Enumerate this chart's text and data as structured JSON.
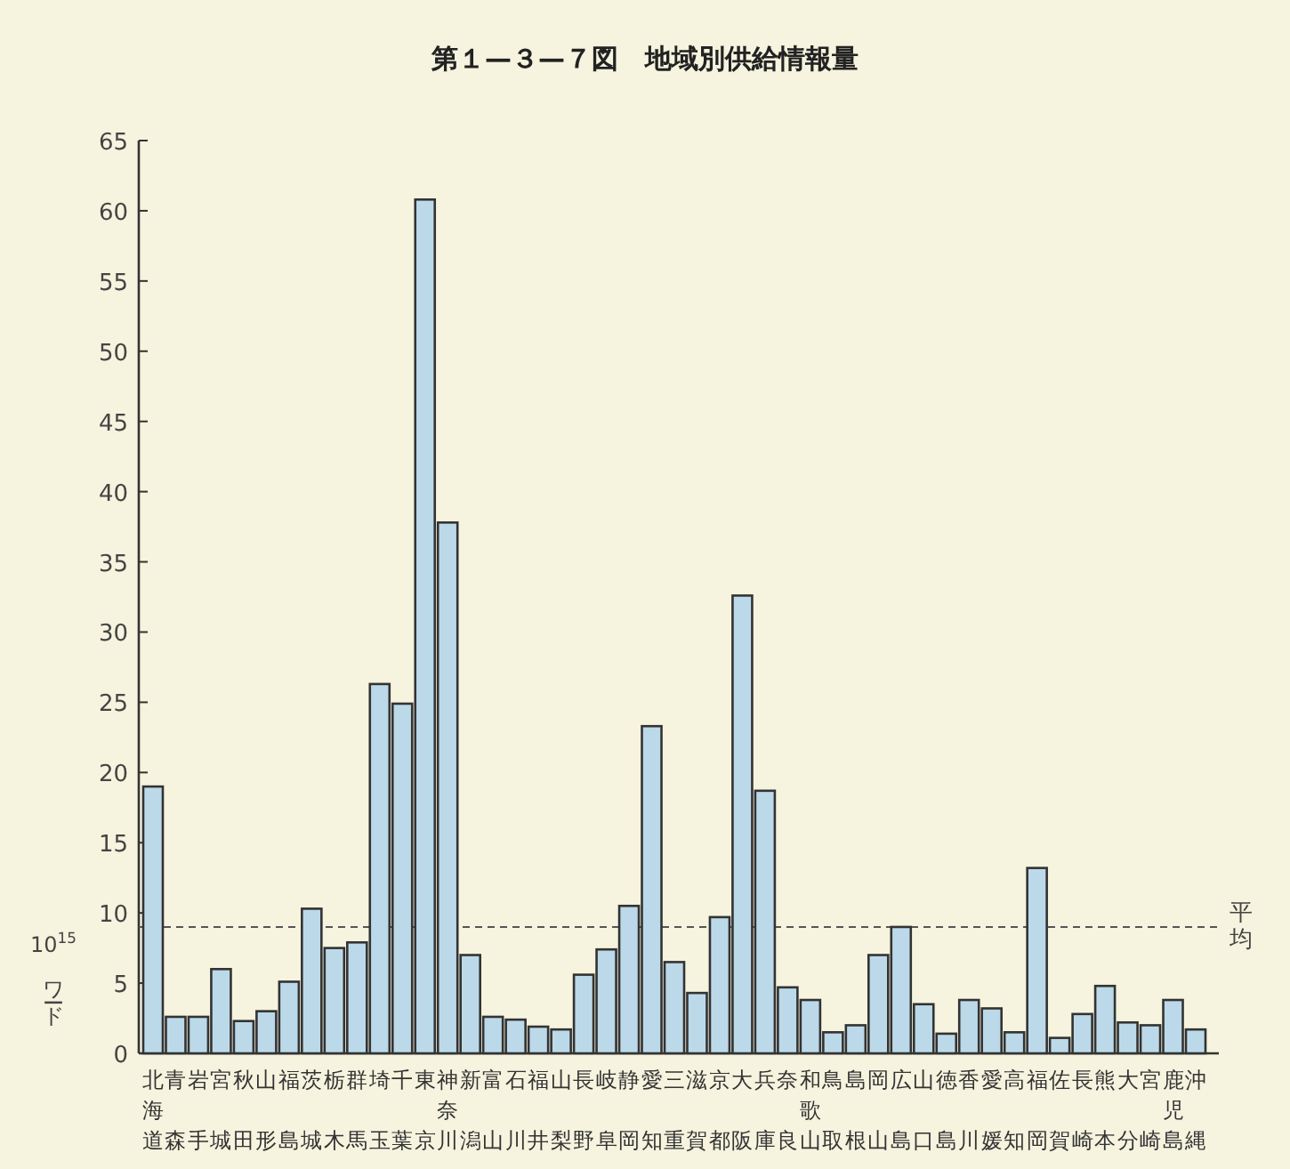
{
  "chart_data": {
    "type": "bar",
    "title": "第１—３—７図　地域別供給情報量",
    "ylabel": "10$^{15}$ ワード",
    "categories": [
      "北海道",
      "青森",
      "岩手",
      "宮城",
      "秋田",
      "山形",
      "福島",
      "茨城",
      "栃木",
      "群馬",
      "埼玉",
      "千葉",
      "東京",
      "神奈川",
      "新潟",
      "富山",
      "石川",
      "福井",
      "山梨",
      "長野",
      "岐阜",
      "静岡",
      "愛知",
      "三重",
      "滋賀",
      "京都",
      "大阪",
      "兵庫",
      "奈良",
      "和歌山",
      "鳥取",
      "島根",
      "岡山",
      "広島",
      "山口",
      "徳島",
      "香川",
      "愛媛",
      "高知",
      "福岡",
      "佐賀",
      "長崎",
      "熊本",
      "大分",
      "宮崎",
      "鹿児島",
      "沖縄"
    ],
    "values": [
      19.0,
      2.6,
      2.6,
      6.0,
      2.3,
      3.0,
      5.1,
      10.3,
      7.5,
      7.9,
      26.3,
      24.9,
      60.8,
      37.8,
      7.0,
      2.6,
      2.4,
      1.9,
      1.7,
      5.6,
      7.4,
      10.5,
      23.3,
      6.5,
      4.3,
      9.7,
      32.6,
      18.7,
      4.7,
      3.8,
      1.5,
      2.0,
      7.0,
      9.0,
      3.5,
      1.4,
      3.8,
      3.2,
      1.5,
      13.2,
      1.1,
      2.8,
      4.8,
      2.2,
      2.0,
      3.8,
      1.7
    ],
    "color": "#bcd9ea",
    "ylim": [
      0,
      65
    ],
    "yticks": [
      0,
      5,
      10,
      15,
      20,
      25,
      30,
      35,
      40,
      45,
      50,
      55,
      60,
      65
    ],
    "ref_lines": [
      {
        "axis": "y",
        "value": 9,
        "label": "平均",
        "line_style": "dashed"
      }
    ]
  }
}
